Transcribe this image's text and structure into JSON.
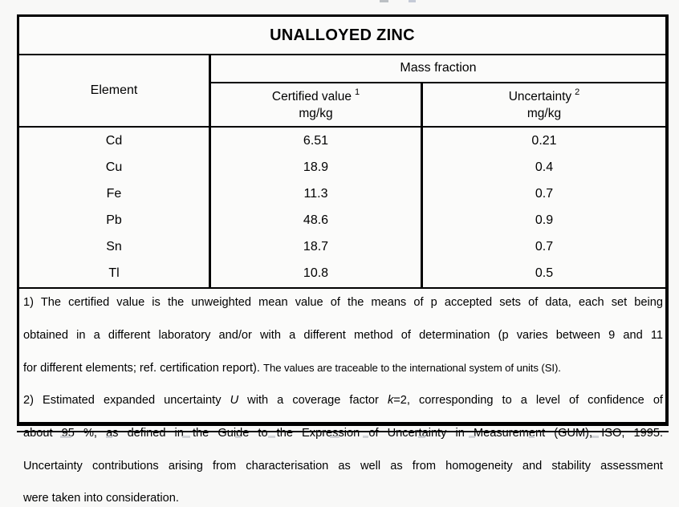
{
  "page": {
    "background": "#f8f8f7"
  },
  "colors": {
    "border": "#000000",
    "text": "#000000",
    "table_background": "#fbfbfa"
  },
  "table": {
    "title": "UNALLOYED ZINC",
    "columns": {
      "element_label": "Element",
      "mass_fraction_label": "Mass fraction",
      "certified": {
        "title": "Certified value",
        "sup": "1",
        "unit": "mg/kg"
      },
      "uncertainty": {
        "title": "Uncertainty",
        "sup": "2",
        "unit": "mg/kg"
      }
    },
    "rows": [
      {
        "element": "Cd",
        "certified": "6.51",
        "uncertainty": "0.21"
      },
      {
        "element": "Cu",
        "certified": "18.9",
        "uncertainty": "0.4"
      },
      {
        "element": "Fe",
        "certified": "11.3",
        "uncertainty": "0.7"
      },
      {
        "element": "Pb",
        "certified": "48.6",
        "uncertainty": "0.9"
      },
      {
        "element": "Sn",
        "certified": "18.7",
        "uncertainty": "0.7"
      },
      {
        "element": "Tl",
        "certified": "10.8",
        "uncertainty": "0.5"
      }
    ]
  },
  "footnotes": [
    {
      "lines": [
        {
          "just": true,
          "segs": [
            {
              "s": "n",
              "t": "1) The certified value is the unweighted mean value of the means of p accepted sets of data, each set being"
            }
          ]
        },
        {
          "just": true,
          "segs": [
            {
              "s": "n",
              "t": "obtained in a different laboratory and/or with a different method of determination (p varies between 9 and 11"
            }
          ]
        },
        {
          "just": false,
          "segs": [
            {
              "s": "n",
              "t": "for different elements; ref. certification report). "
            },
            {
              "s": "c",
              "t": "The values are traceable to the international system of units (SI)."
            }
          ]
        }
      ]
    },
    {
      "lines": [
        {
          "just": true,
          "segs": [
            {
              "s": "n",
              "t": "2) Estimated expanded uncertainty "
            },
            {
              "s": "i",
              "t": "U"
            },
            {
              "s": "n",
              "t": " with a coverage factor "
            },
            {
              "s": "i",
              "t": "k"
            },
            {
              "s": "n",
              "t": "=2, corresponding to a level of confidence of"
            }
          ]
        },
        {
          "just": true,
          "segs": [
            {
              "s": "n",
              "t": "about 95 %, as defined in the Guide to the Expression of Uncertainty in Measurement (GUM), ISO, 1995."
            }
          ]
        },
        {
          "just": true,
          "segs": [
            {
              "s": "n",
              "t": "Uncertainty contributions arising from characterisation as well as from homogeneity and stability assessment"
            }
          ]
        },
        {
          "just": false,
          "segs": [
            {
              "s": "n",
              "t": "were taken into consideration."
            }
          ]
        }
      ]
    }
  ]
}
